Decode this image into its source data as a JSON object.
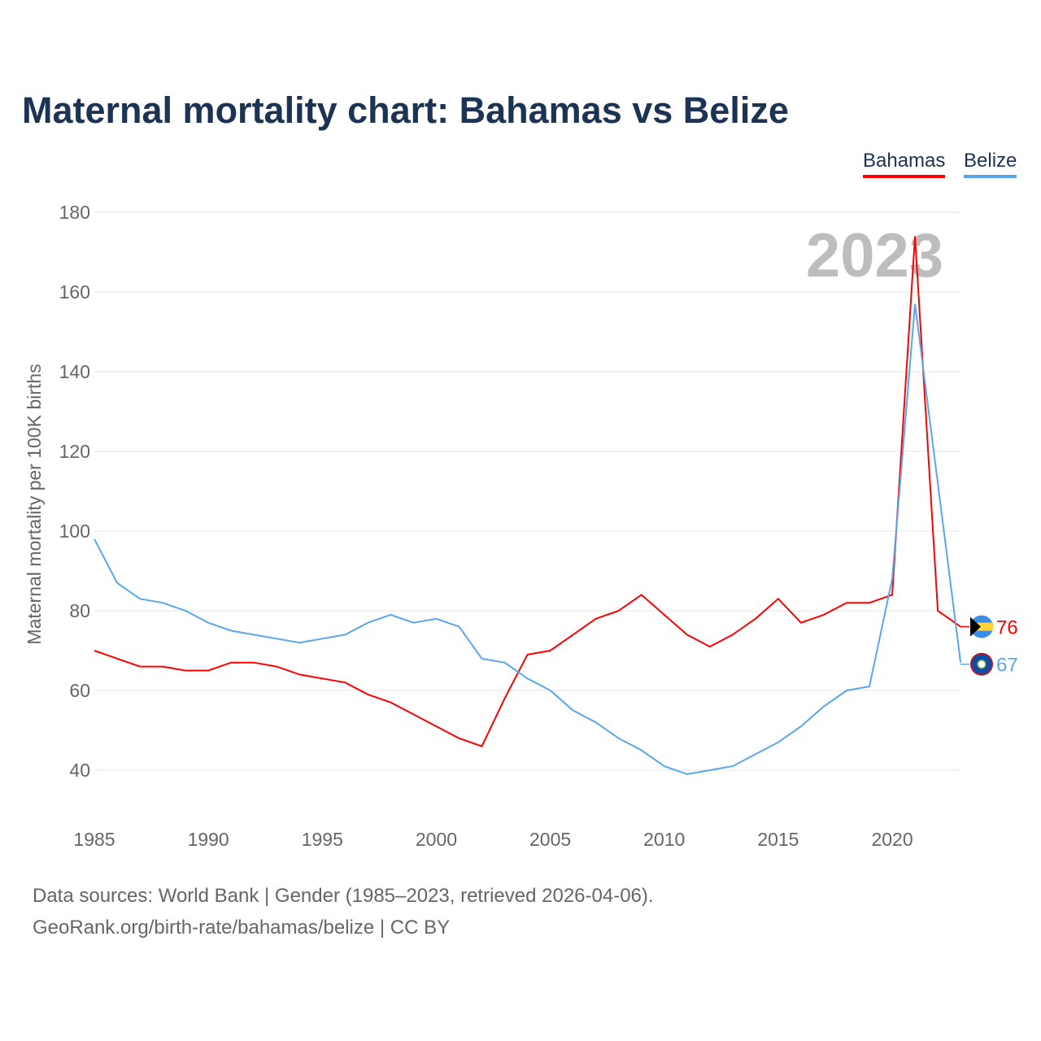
{
  "title": "Maternal mortality chart: Bahamas vs Belize",
  "legend": [
    "Bahamas",
    "Belize"
  ],
  "year_watermark": "2023",
  "sources": [
    "Data sources: World Bank | Gender (1985–2023, retrieved 2026-04-06).",
    "GeoRank.org/birth-rate/bahamas/belize | CC BY"
  ],
  "colors": {
    "Bahamas": "#ff0000",
    "Belize": "#5aa6ec"
  },
  "chart_data": {
    "type": "line",
    "title": "Maternal mortality chart: Bahamas vs Belize",
    "xlabel": "",
    "ylabel": "Maternal mortality per 100K births",
    "xlim": [
      1985,
      2023
    ],
    "ylim": [
      30,
      185
    ],
    "yticks": [
      40,
      60,
      80,
      100,
      120,
      140,
      160,
      180
    ],
    "xticks": [
      1985,
      1990,
      1995,
      2000,
      2005,
      2010,
      2015,
      2020
    ],
    "grid": true,
    "legend_position": "top-right",
    "x": [
      1985,
      1986,
      1987,
      1988,
      1989,
      1990,
      1991,
      1992,
      1993,
      1994,
      1995,
      1996,
      1997,
      1998,
      1999,
      2000,
      2001,
      2002,
      2003,
      2004,
      2005,
      2006,
      2007,
      2008,
      2009,
      2010,
      2011,
      2012,
      2013,
      2014,
      2015,
      2016,
      2017,
      2018,
      2019,
      2020,
      2021,
      2022,
      2023
    ],
    "series": [
      {
        "name": "Bahamas",
        "end_label": "76",
        "values": [
          70,
          68,
          66,
          66,
          65,
          65,
          67,
          67,
          66,
          64,
          63,
          62,
          59,
          57,
          54,
          51,
          48,
          46,
          58,
          69,
          70,
          74,
          78,
          80,
          84,
          79,
          74,
          71,
          74,
          78,
          83,
          77,
          79,
          82,
          82,
          84,
          174,
          80,
          76
        ]
      },
      {
        "name": "Belize",
        "end_label": "67",
        "values": [
          98,
          87,
          83,
          82,
          80,
          77,
          75,
          74,
          73,
          72,
          73,
          74,
          77,
          79,
          77,
          78,
          76,
          68,
          67,
          63,
          60,
          55,
          52,
          48,
          45,
          41,
          39,
          40,
          41,
          44,
          47,
          51,
          56,
          60,
          61,
          88,
          157,
          112,
          67
        ]
      }
    ]
  }
}
